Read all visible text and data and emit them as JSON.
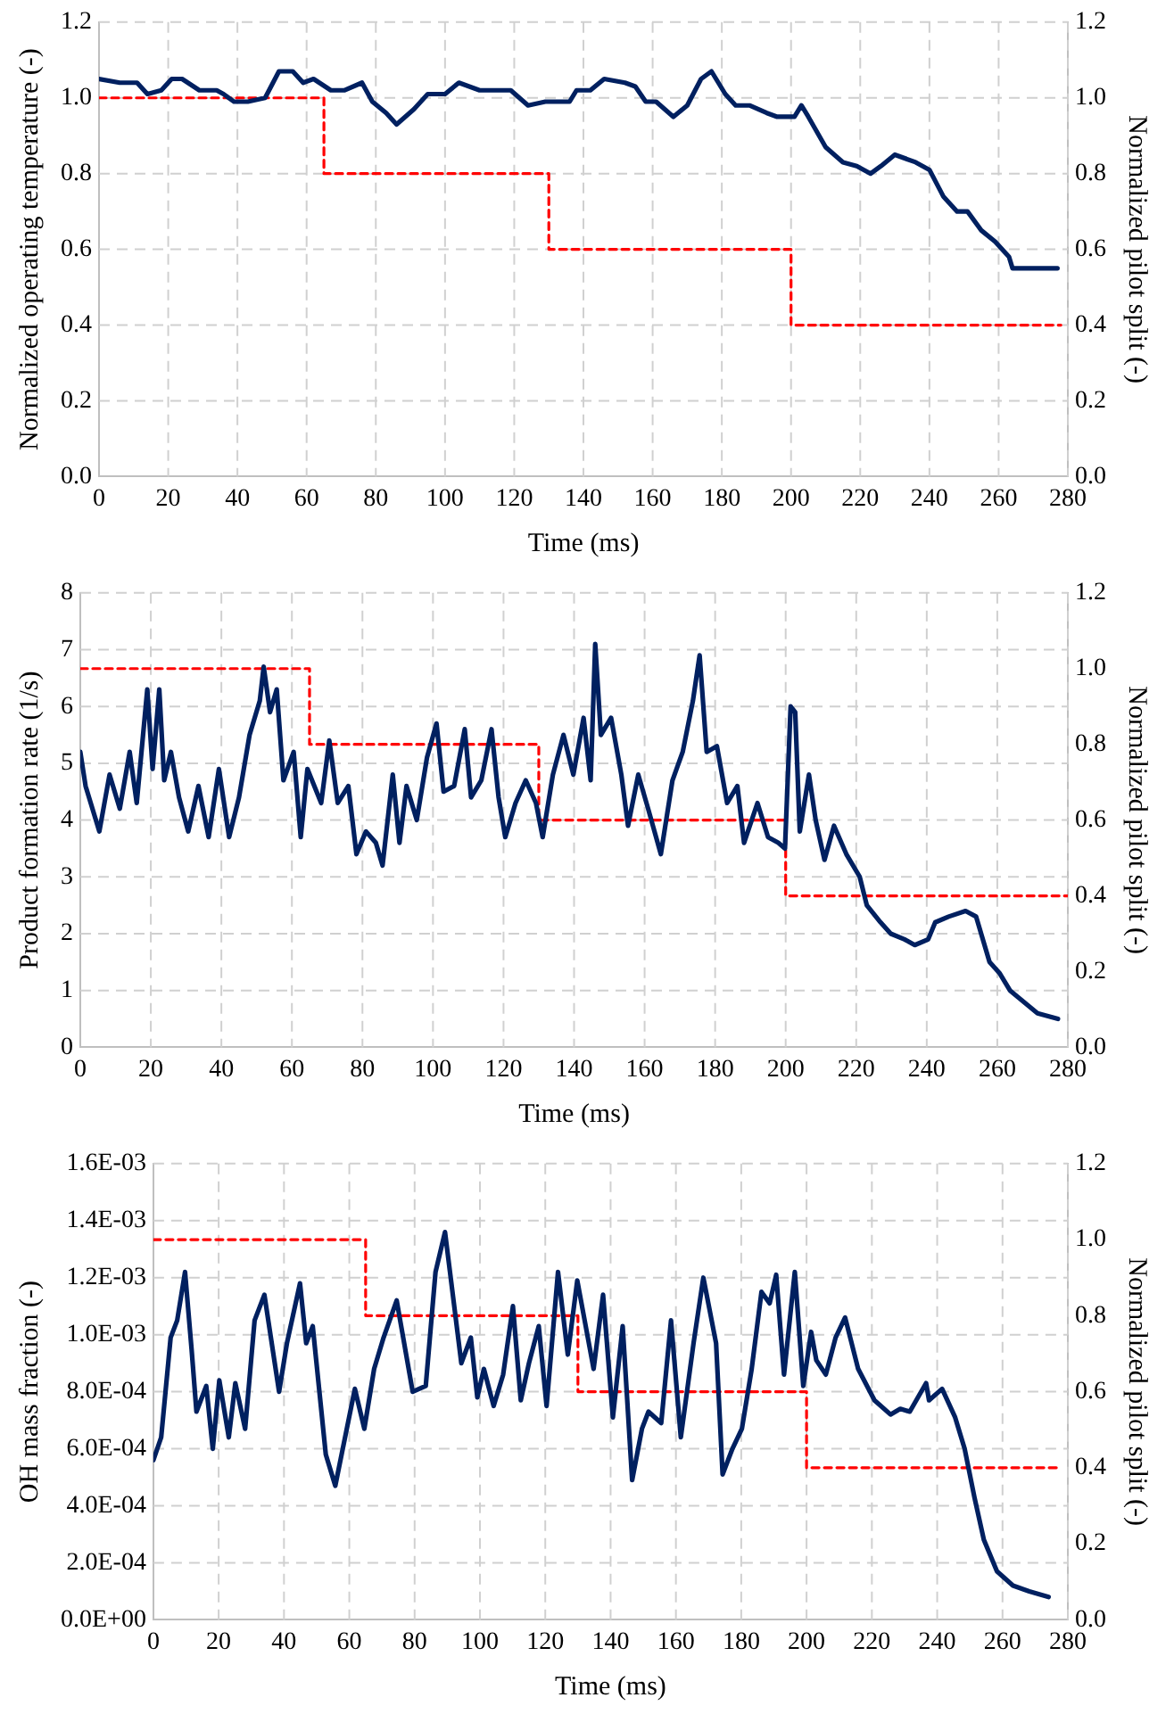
{
  "chart_data": [
    {
      "type": "line",
      "xlabel": "Time (ms)",
      "ylabel": "Normalized operating temperature (-)",
      "y2label": "Normalized pilot split (-)",
      "xlim": [
        0,
        280
      ],
      "xticks": [
        0,
        20,
        40,
        60,
        80,
        100,
        120,
        140,
        160,
        180,
        200,
        220,
        240,
        260,
        280
      ],
      "ylim": [
        0,
        1.2
      ],
      "yticks": [
        {
          "value": 0,
          "label": "0.0"
        },
        {
          "value": 0.2,
          "label": "0.2"
        },
        {
          "value": 0.4,
          "label": "0.4"
        },
        {
          "value": 0.6,
          "label": "0.6"
        },
        {
          "value": 0.8,
          "label": "0.8"
        },
        {
          "value": 1,
          "label": "1.0"
        },
        {
          "value": 1.2,
          "label": "1.2"
        }
      ],
      "y2lim": [
        0,
        1.2
      ],
      "y2ticks": [
        {
          "value": 0,
          "label": "0.0"
        },
        {
          "value": 0.2,
          "label": "0.2"
        },
        {
          "value": 0.4,
          "label": "0.4"
        },
        {
          "value": 0.6,
          "label": "0.6"
        },
        {
          "value": 0.8,
          "label": "0.8"
        },
        {
          "value": 1,
          "label": "1.0"
        },
        {
          "value": 1.2,
          "label": "1.2"
        }
      ],
      "grid": true,
      "marker": "none",
      "series": [
        {
          "type": "line",
          "color": "#002060",
          "line_style": "solid",
          "x": [
            0,
            6,
            11,
            14,
            18,
            21,
            24,
            29,
            34,
            36,
            39,
            43,
            48,
            52,
            56,
            59,
            62,
            67,
            71,
            76,
            79,
            83,
            86,
            91,
            95,
            100,
            104,
            110,
            114,
            119,
            124,
            129,
            136,
            138,
            142,
            146,
            152,
            155,
            158,
            161,
            166,
            170,
            174,
            177,
            181,
            184,
            188,
            193,
            196,
            201,
            203,
            205,
            210,
            215,
            219,
            223,
            226,
            230,
            236,
            240,
            244,
            248,
            251,
            255,
            259,
            263,
            264,
            270,
            277
          ],
          "values": [
            1.05,
            1.04,
            1.04,
            1.01,
            1.02,
            1.05,
            1.05,
            1.02,
            1.02,
            1.01,
            0.99,
            0.99,
            1.0,
            1.07,
            1.07,
            1.04,
            1.05,
            1.02,
            1.02,
            1.04,
            0.99,
            0.96,
            0.93,
            0.97,
            1.01,
            1.01,
            1.04,
            1.02,
            1.02,
            1.02,
            0.98,
            0.99,
            0.99,
            1.02,
            1.02,
            1.05,
            1.04,
            1.03,
            0.99,
            0.99,
            0.95,
            0.98,
            1.05,
            1.07,
            1.01,
            0.98,
            0.98,
            0.96,
            0.95,
            0.95,
            0.98,
            0.95,
            0.87,
            0.83,
            0.82,
            0.8,
            0.82,
            0.85,
            0.83,
            0.81,
            0.74,
            0.7,
            0.7,
            0.65,
            0.62,
            0.58,
            0.55,
            0.55,
            0.55
          ]
        },
        {
          "type": "step",
          "axis": "y2",
          "color": "#ff0000",
          "line_style": "dashed",
          "x": [
            0,
            65,
            130,
            200,
            278
          ],
          "values": [
            1.0,
            0.8,
            0.6,
            0.4,
            0.4
          ]
        }
      ]
    },
    {
      "type": "line",
      "xlabel": "Time (ms)",
      "ylabel": "Product formation rate (1/s)",
      "y2label": "Normalized pilot split (-)",
      "xlim": [
        0,
        280
      ],
      "xticks": [
        0,
        20,
        40,
        60,
        80,
        100,
        120,
        140,
        160,
        180,
        200,
        220,
        240,
        260,
        280
      ],
      "ylim": [
        0,
        8
      ],
      "yticks": [
        0,
        1,
        2,
        3,
        4,
        5,
        6,
        7,
        8
      ],
      "y2lim": [
        0,
        1.2
      ],
      "y2ticks": [
        {
          "value": 0,
          "label": "0.0"
        },
        {
          "value": 0.2,
          "label": "0.2"
        },
        {
          "value": 0.4,
          "label": "0.4"
        },
        {
          "value": 0.6,
          "label": "0.6"
        },
        {
          "value": 0.8,
          "label": "0.8"
        },
        {
          "value": 1,
          "label": "1.0"
        },
        {
          "value": 1.2,
          "label": "1.2"
        }
      ],
      "grid": true,
      "marker": "none",
      "series": [
        {
          "type": "line",
          "color": "#002060",
          "line_style": "solid",
          "x": [
            0,
            1.5,
            5.4,
            8.3,
            11.2,
            14,
            16,
            19,
            20.5,
            22.4,
            23.8,
            25.7,
            28,
            30.6,
            33.5,
            36.4,
            39.3,
            42.2,
            45,
            48,
            50.9,
            52,
            53.8,
            55.7,
            57.6,
            60.5,
            62.5,
            64.4,
            68.3,
            70.6,
            73,
            76,
            78.3,
            81,
            83.8,
            85.7,
            88.6,
            90.5,
            92.5,
            95.4,
            98.3,
            101,
            103,
            106,
            109,
            110.8,
            113.7,
            116.6,
            118.6,
            120.5,
            123.4,
            126.3,
            129.2,
            131.1,
            134,
            137,
            139.8,
            142.7,
            144.7,
            146,
            147.6,
            150.5,
            153.4,
            155.3,
            158.2,
            161,
            164.6,
            167.9,
            170.8,
            173.7,
            175.6,
            177.6,
            180.5,
            183.4,
            186.3,
            188.2,
            192,
            195,
            197.9,
            199.8,
            201.4,
            202.7,
            204,
            206.6,
            208.5,
            211,
            213.7,
            217.2,
            221,
            223,
            226.9,
            229.8,
            233.7,
            236.6,
            240.4,
            242.4,
            246.2,
            251,
            254,
            257.8,
            260.7,
            263.6,
            267.5,
            271.4,
            277.2
          ],
          "values": [
            5.2,
            4.6,
            3.8,
            4.8,
            4.2,
            5.2,
            4.3,
            6.3,
            4.9,
            6.3,
            4.7,
            5.2,
            4.4,
            3.8,
            4.6,
            3.7,
            4.9,
            3.7,
            4.4,
            5.5,
            6.1,
            6.7,
            5.9,
            6.3,
            4.7,
            5.2,
            3.7,
            4.9,
            4.3,
            5.4,
            4.3,
            4.6,
            3.4,
            3.8,
            3.6,
            3.2,
            4.8,
            3.6,
            4.6,
            4.0,
            5.1,
            5.7,
            4.5,
            4.6,
            5.6,
            4.4,
            4.7,
            5.6,
            4.4,
            3.7,
            4.3,
            4.7,
            4.3,
            3.7,
            4.8,
            5.5,
            4.8,
            5.8,
            4.7,
            7.1,
            5.5,
            5.8,
            4.8,
            3.9,
            4.8,
            4.2,
            3.4,
            4.7,
            5.2,
            6.1,
            6.9,
            5.2,
            5.3,
            4.3,
            4.6,
            3.6,
            4.3,
            3.7,
            3.6,
            3.5,
            6.0,
            5.9,
            3.8,
            4.8,
            4.0,
            3.3,
            3.9,
            3.4,
            3.0,
            2.5,
            2.2,
            2.0,
            1.9,
            1.8,
            1.9,
            2.2,
            2.3,
            2.4,
            2.3,
            1.5,
            1.3,
            1.0,
            0.8,
            0.6,
            0.5
          ]
        },
        {
          "type": "step",
          "axis": "y2",
          "color": "#ff0000",
          "line_style": "dashed",
          "x": [
            0,
            65,
            130,
            200,
            280
          ],
          "values": [
            1.0,
            0.8,
            0.6,
            0.4,
            0.4
          ]
        }
      ]
    },
    {
      "type": "line",
      "xlabel": "Time (ms)",
      "ylabel": "OH mass fraction (-)",
      "y2label": "Normalized pilot split (-)",
      "xlim": [
        0,
        280
      ],
      "xticks": [
        0,
        20,
        40,
        60,
        80,
        100,
        120,
        140,
        160,
        180,
        200,
        220,
        240,
        260,
        280
      ],
      "ylim": [
        0,
        0.0016
      ],
      "yticks": [
        {
          "value": 0,
          "label": "0.0E+00"
        },
        {
          "value": 0.0002,
          "label": "2.0E-04"
        },
        {
          "value": 0.0004,
          "label": "4.0E-04"
        },
        {
          "value": 0.0006,
          "label": "6.0E-04"
        },
        {
          "value": 0.0008,
          "label": "8.0E-04"
        },
        {
          "value": 0.001,
          "label": "1.0E-03"
        },
        {
          "value": 0.0012,
          "label": "1.2E-03"
        },
        {
          "value": 0.0014,
          "label": "1.4E-03"
        },
        {
          "value": 0.0016,
          "label": "1.6E-03"
        }
      ],
      "y2lim": [
        0,
        1.2
      ],
      "y2ticks": [
        {
          "value": 0,
          "label": "0.0"
        },
        {
          "value": 0.2,
          "label": "0.2"
        },
        {
          "value": 0.4,
          "label": "0.4"
        },
        {
          "value": 0.6,
          "label": "0.6"
        },
        {
          "value": 0.8,
          "label": "0.8"
        },
        {
          "value": 1,
          "label": "1.0"
        },
        {
          "value": 1.2,
          "label": "1.2"
        }
      ],
      "grid": true,
      "marker": "none",
      "series": [
        {
          "type": "line",
          "color": "#002060",
          "line_style": "solid",
          "x": [
            0,
            2.4,
            5.3,
            7.3,
            9.7,
            11.7,
            13.2,
            16.2,
            18.2,
            20.2,
            23.1,
            25.1,
            28.1,
            31,
            34,
            38.5,
            40.9,
            44.9,
            46.8,
            48.8,
            52.8,
            55.7,
            58.7,
            61.7,
            64.6,
            67.6,
            70.5,
            74.5,
            79.4,
            83.4,
            86.4,
            89.3,
            94.3,
            97.2,
            99.2,
            101.2,
            104.2,
            107.1,
            110.1,
            112.5,
            115,
            118,
            120.4,
            123.9,
            126.9,
            129.8,
            134.8,
            137.7,
            140.7,
            143.7,
            146.6,
            149.6,
            151.6,
            155.5,
            158.5,
            161.5,
            165.4,
            168.4,
            172.3,
            174.3,
            177.3,
            180.2,
            183.2,
            186.2,
            188.7,
            190.7,
            193.1,
            196.4,
            199,
            201.4,
            203,
            205.9,
            208.9,
            211.8,
            215.8,
            220.8,
            225.7,
            228.7,
            231.6,
            236.6,
            237.5,
            241.5,
            245.5,
            248.4,
            251.4,
            254.3,
            258.3,
            263.2,
            268.2,
            274.1
          ],
          "values": [
            0.00056,
            0.00064,
            0.00099,
            0.00105,
            0.00122,
            0.00095,
            0.00073,
            0.00082,
            0.0006,
            0.00084,
            0.00064,
            0.00083,
            0.00067,
            0.00105,
            0.00114,
            0.0008,
            0.00097,
            0.00118,
            0.00097,
            0.00103,
            0.00058,
            0.00047,
            0.00064,
            0.00081,
            0.00067,
            0.00088,
            0.00099,
            0.00112,
            0.0008,
            0.00082,
            0.00122,
            0.00136,
            0.0009,
            0.00099,
            0.00078,
            0.00088,
            0.00075,
            0.00086,
            0.0011,
            0.00077,
            0.0009,
            0.00103,
            0.00075,
            0.00122,
            0.00093,
            0.00119,
            0.00088,
            0.00114,
            0.00071,
            0.00103,
            0.00049,
            0.00067,
            0.00073,
            0.00069,
            0.00105,
            0.00064,
            0.00097,
            0.0012,
            0.00097,
            0.00051,
            0.0006,
            0.00067,
            0.00088,
            0.00115,
            0.00111,
            0.00121,
            0.00086,
            0.00122,
            0.00082,
            0.00101,
            0.00091,
            0.00086,
            0.00099,
            0.00106,
            0.00088,
            0.00077,
            0.00072,
            0.00074,
            0.00073,
            0.00083,
            0.00077,
            0.00081,
            0.00071,
            0.0006,
            0.00043,
            0.00028,
            0.00017,
            0.00012,
            0.0001,
            8e-05
          ]
        },
        {
          "type": "step",
          "axis": "y2",
          "color": "#ff0000",
          "line_style": "dashed",
          "x": [
            0,
            65,
            130,
            200,
            278
          ],
          "values": [
            1.0,
            0.8,
            0.6,
            0.4,
            0.4
          ]
        }
      ]
    }
  ]
}
